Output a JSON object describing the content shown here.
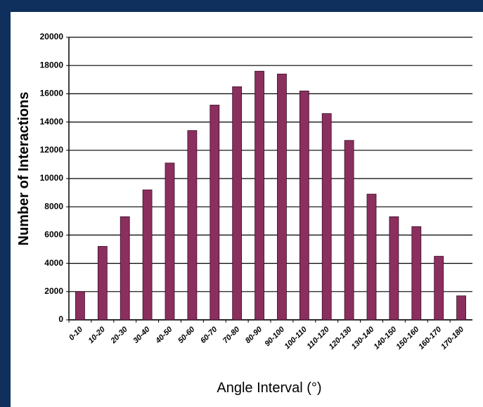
{
  "chart_data": {
    "type": "bar",
    "x_label": "Angle Interval (°)",
    "y_label": "Number of Interactions",
    "categories": [
      "0-10",
      "10-20",
      "20-30",
      "30-40",
      "40-50",
      "50-60",
      "60-70",
      "70-80",
      "80-90",
      "90-100",
      "100-110",
      "110-120",
      "120-130",
      "130-140",
      "140-150",
      "150-160",
      "160-170",
      "170-180"
    ],
    "values": [
      2000,
      5200,
      7300,
      9200,
      11100,
      13400,
      15200,
      16500,
      17600,
      17400,
      16200,
      14600,
      12700,
      8900,
      7300,
      6600,
      4500,
      1700
    ],
    "color": "#8b2f5e",
    "ylim": [
      0,
      20000
    ],
    "yticks": [
      0,
      2000,
      4000,
      6000,
      8000,
      10000,
      12000,
      14000,
      16000,
      18000,
      20000
    ],
    "grid": true
  }
}
